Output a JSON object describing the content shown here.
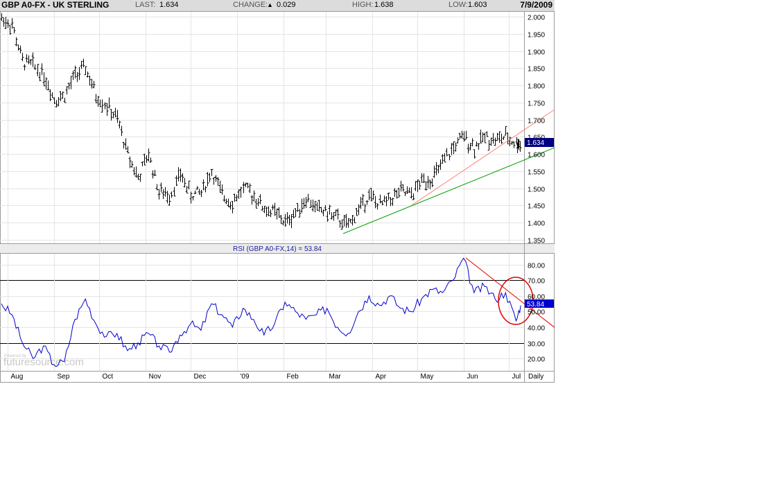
{
  "header": {
    "symbol": "GBP A0-FX - UK STERLING",
    "last_label": "LAST:",
    "last_value": "1.634",
    "change_label": "CHANGE:",
    "change_value": "0.029",
    "high_label": "HIGH:",
    "high_value": "1.638",
    "low_label": "LOW:",
    "low_value": "1.603",
    "date": "7/9/2009"
  },
  "rsi_title": "RSI (GBP A0-FX,14) = 53.84",
  "price_badge": "1.634",
  "rsi_badge": "53.84",
  "watermark": "futuresource.com",
  "watermark_small": "Powered by",
  "period_label": "Daily",
  "colors": {
    "price_bars": "#000000",
    "rsi_line": "#0000cc",
    "support_trendline": "#008000",
    "resistance_trendlines": "#e00000",
    "highlight_circle": "#e00000",
    "badge_price": "#000080",
    "badge_rsi": "#0000cc"
  },
  "chart_data": [
    {
      "type": "line",
      "series": [
        {
          "x": [
            "2008-07-28",
            "2008-08-04",
            "2008-08-11",
            "2008-08-18",
            "2008-08-25",
            "2008-09-01",
            "2008-09-08",
            "2008-09-15",
            "2008-09-22",
            "2008-09-29",
            "2008-10-06",
            "2008-10-13",
            "2008-10-20",
            "2008-10-27",
            "2008-11-03",
            "2008-11-10",
            "2008-11-17",
            "2008-11-24",
            "2008-12-01",
            "2008-12-08",
            "2008-12-15",
            "2008-12-22",
            "2008-12-29",
            "2009-01-05",
            "2009-01-12",
            "2009-01-19",
            "2009-01-26",
            "2009-02-02",
            "2009-02-09",
            "2009-02-16",
            "2009-02-23",
            "2009-03-02",
            "2009-03-09",
            "2009-03-16",
            "2009-03-23",
            "2009-03-30",
            "2009-04-06",
            "2009-04-13",
            "2009-04-20",
            "2009-04-27",
            "2009-05-04",
            "2009-05-11",
            "2009-05-18",
            "2009-05-25",
            "2009-06-01",
            "2009-06-08",
            "2009-06-15",
            "2009-06-22",
            "2009-06-29",
            "2009-07-06",
            "2009-07-09"
          ],
          "values": [
            1.995,
            1.975,
            1.87,
            1.86,
            1.83,
            1.76,
            1.77,
            1.83,
            1.85,
            1.77,
            1.74,
            1.7,
            1.6,
            1.53,
            1.6,
            1.49,
            1.48,
            1.54,
            1.48,
            1.49,
            1.55,
            1.48,
            1.46,
            1.5,
            1.48,
            1.44,
            1.43,
            1.4,
            1.43,
            1.47,
            1.44,
            1.43,
            1.41,
            1.39,
            1.44,
            1.48,
            1.45,
            1.47,
            1.49,
            1.48,
            1.52,
            1.53,
            1.57,
            1.62,
            1.65,
            1.62,
            1.65,
            1.64,
            1.65,
            1.63,
            1.634
          ]
        }
      ],
      "ylim": [
        1.35,
        2.0
      ],
      "y_ticks": [
        "2.000",
        "1.950",
        "1.900",
        "1.850",
        "1.800",
        "1.750",
        "1.700",
        "1.650",
        "1.600",
        "1.550",
        "1.500",
        "1.450",
        "1.400",
        "1.350"
      ]
    },
    {
      "type": "line",
      "title": "RSI (GBP A0-FX,14) = 53.84",
      "series": [
        {
          "x": [
            "2008-07-28",
            "2008-08-04",
            "2008-08-11",
            "2008-08-18",
            "2008-08-25",
            "2008-09-01",
            "2008-09-08",
            "2008-09-15",
            "2008-09-22",
            "2008-09-29",
            "2008-10-06",
            "2008-10-13",
            "2008-10-20",
            "2008-10-27",
            "2008-11-03",
            "2008-11-10",
            "2008-11-17",
            "2008-11-24",
            "2008-12-01",
            "2008-12-08",
            "2008-12-15",
            "2008-12-22",
            "2008-12-29",
            "2009-01-05",
            "2009-01-12",
            "2009-01-19",
            "2009-01-26",
            "2009-02-02",
            "2009-02-09",
            "2009-02-16",
            "2009-02-23",
            "2009-03-02",
            "2009-03-09",
            "2009-03-16",
            "2009-03-23",
            "2009-03-30",
            "2009-04-06",
            "2009-04-13",
            "2009-04-20",
            "2009-04-27",
            "2009-05-04",
            "2009-05-11",
            "2009-05-18",
            "2009-05-25",
            "2009-06-01",
            "2009-06-08",
            "2009-06-15",
            "2009-06-22",
            "2009-06-29",
            "2009-07-06",
            "2009-07-09"
          ],
          "values": [
            55,
            48,
            30,
            20,
            28,
            16,
            18,
            45,
            58,
            42,
            34,
            36,
            25,
            30,
            36,
            28,
            24,
            35,
            42,
            38,
            55,
            48,
            40,
            52,
            45,
            35,
            42,
            56,
            50,
            45,
            48,
            52,
            40,
            36,
            50,
            60,
            54,
            60,
            52,
            50,
            58,
            64,
            62,
            70,
            84,
            62,
            66,
            58,
            62,
            44,
            53.84
          ]
        }
      ],
      "ylim": [
        13,
        86
      ],
      "y_ticks": [
        "80.00",
        "70.00",
        "60.00",
        "50.00",
        "40.00",
        "30.00",
        "20.00"
      ],
      "reference_lines": [
        70,
        30
      ]
    }
  ],
  "x_labels": [
    "Aug",
    "Sep",
    "Oct",
    "Nov",
    "Dec",
    "'09",
    "Feb",
    "Mar",
    "Apr",
    "May",
    "Jun",
    "Jul"
  ]
}
